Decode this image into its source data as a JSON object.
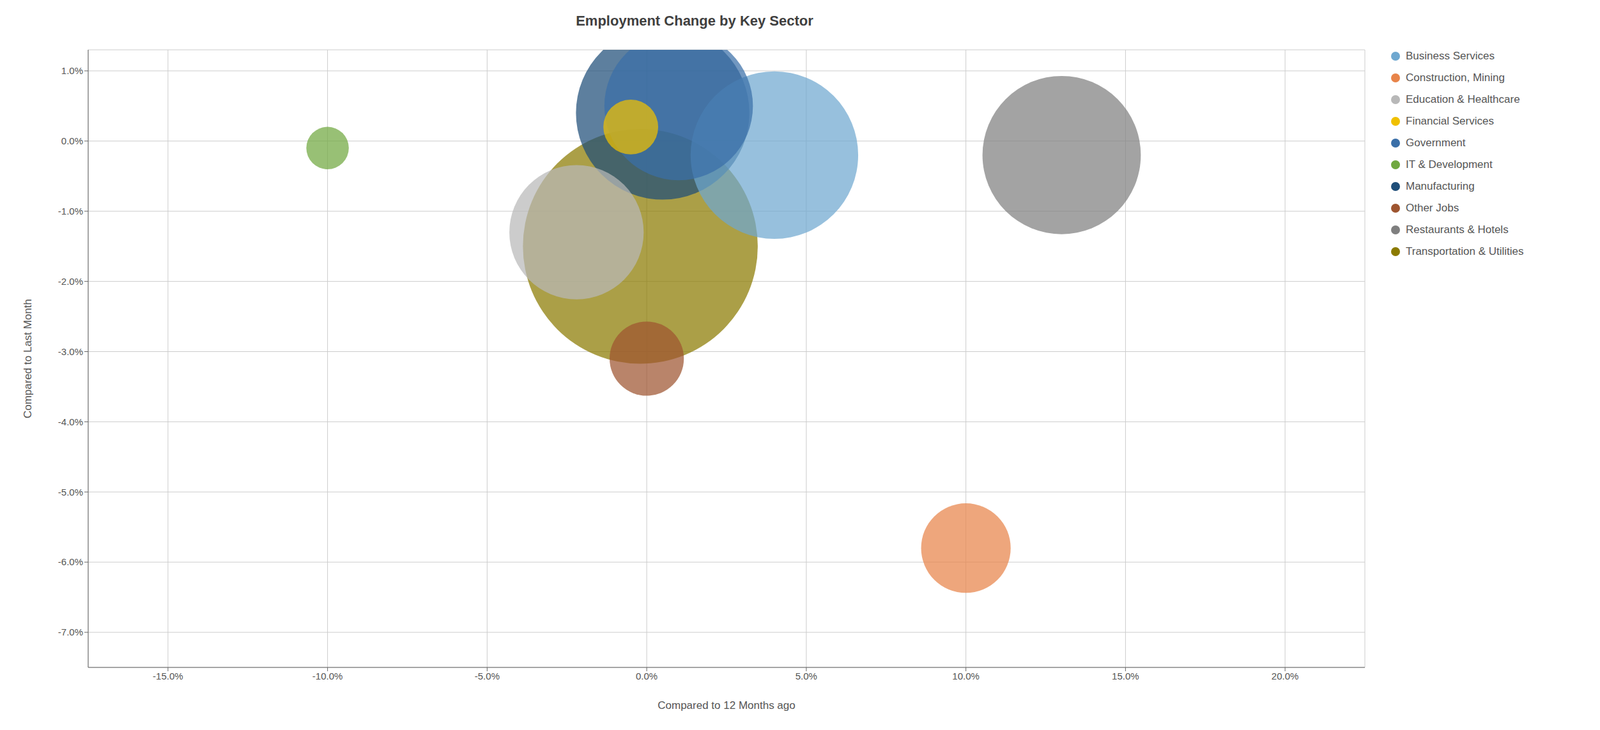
{
  "chart_data": {
    "type": "scatter",
    "title": "Employment Change by Key Sector",
    "x_label": "Compared to 12 Months ago",
    "y_label": "Compared to Last Month",
    "xlim": [
      -0.175,
      0.225
    ],
    "ylim": [
      -0.075,
      0.013
    ],
    "xticks": [
      {
        "value": -0.15,
        "label": "-15.0%"
      },
      {
        "value": -0.1,
        "label": "-10.0%"
      },
      {
        "value": -0.05,
        "label": "-5.0%"
      },
      {
        "value": 0.0,
        "label": "0.0%"
      },
      {
        "value": 0.05,
        "label": "5.0%"
      },
      {
        "value": 0.1,
        "label": "10.0%"
      },
      {
        "value": 0.15,
        "label": "15.0%"
      },
      {
        "value": 0.2,
        "label": "20.0%"
      }
    ],
    "yticks": [
      {
        "value": -0.07,
        "label": "-7.0%"
      },
      {
        "value": -0.06,
        "label": "-6.0%"
      },
      {
        "value": -0.05,
        "label": "-5.0%"
      },
      {
        "value": -0.04,
        "label": "-4.0%"
      },
      {
        "value": -0.03,
        "label": "-3.0%"
      },
      {
        "value": -0.02,
        "label": "-2.0%"
      },
      {
        "value": -0.01,
        "label": "-1.0%"
      },
      {
        "value": 0.0,
        "label": "0.0%"
      },
      {
        "value": 0.01,
        "label": "1.0%"
      }
    ],
    "grid": true,
    "legend": "right",
    "series": [
      {
        "name": "Business Services",
        "color": "#6fa8d0",
        "x": 0.04,
        "y": -0.002,
        "size": 28000
      },
      {
        "name": "Construction, Mining",
        "color": "#e8844a",
        "x": 0.1,
        "y": -0.058,
        "size": 8000
      },
      {
        "name": "Education & Healthcare",
        "color": "#b8b8b8",
        "x": -0.022,
        "y": -0.013,
        "size": 18000
      },
      {
        "name": "Financial Services",
        "color": "#f0c000",
        "x": -0.005,
        "y": 0.002,
        "size": 3000
      },
      {
        "name": "Government",
        "color": "#3a6fa8",
        "x": 0.01,
        "y": 0.005,
        "size": 22000
      },
      {
        "name": "IT & Development",
        "color": "#70a840",
        "x": -0.1,
        "y": -0.001,
        "size": 1800
      },
      {
        "name": "Manufacturing",
        "color": "#1f4e79",
        "x": 0.005,
        "y": 0.004,
        "size": 30000
      },
      {
        "name": "Other Jobs",
        "color": "#9e5530",
        "x": 0.0,
        "y": -0.031,
        "size": 5500
      },
      {
        "name": "Restaurants & Hotels",
        "color": "#7f7f7f",
        "x": 0.13,
        "y": -0.002,
        "size": 25000
      },
      {
        "name": "Transportation & Utilities",
        "color": "#8b7a00",
        "x": -0.002,
        "y": -0.015,
        "size": 55000
      }
    ]
  }
}
